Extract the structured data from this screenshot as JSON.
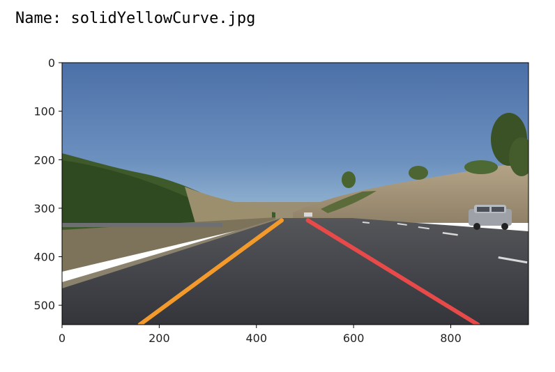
{
  "header": {
    "label": "Name:",
    "filename": "solidYellowCurve.jpg"
  },
  "plot": {
    "x_ticks": [
      "0",
      "200",
      "400",
      "600",
      "800"
    ],
    "y_ticks": [
      "0",
      "100",
      "200",
      "300",
      "400",
      "500"
    ],
    "x_tick_values": [
      0,
      200,
      400,
      600,
      800
    ],
    "y_tick_values": [
      0,
      100,
      200,
      300,
      400,
      500
    ],
    "xlim": [
      0,
      960
    ],
    "ylim": [
      540,
      0
    ]
  },
  "image": {
    "left_lane": {
      "x": [
        160,
        452
      ],
      "y": [
        540,
        325
      ],
      "color": "#f29a2b"
    },
    "right_lane": {
      "x": [
        506,
        856
      ],
      "y": [
        325,
        540
      ],
      "color": "#e84a4a"
    }
  },
  "colors": {
    "sky_top": "#4f75ad",
    "sky_bottom": "#8fb3cf",
    "road": "#3b3b41",
    "shoulder": "#8a7d66"
  }
}
